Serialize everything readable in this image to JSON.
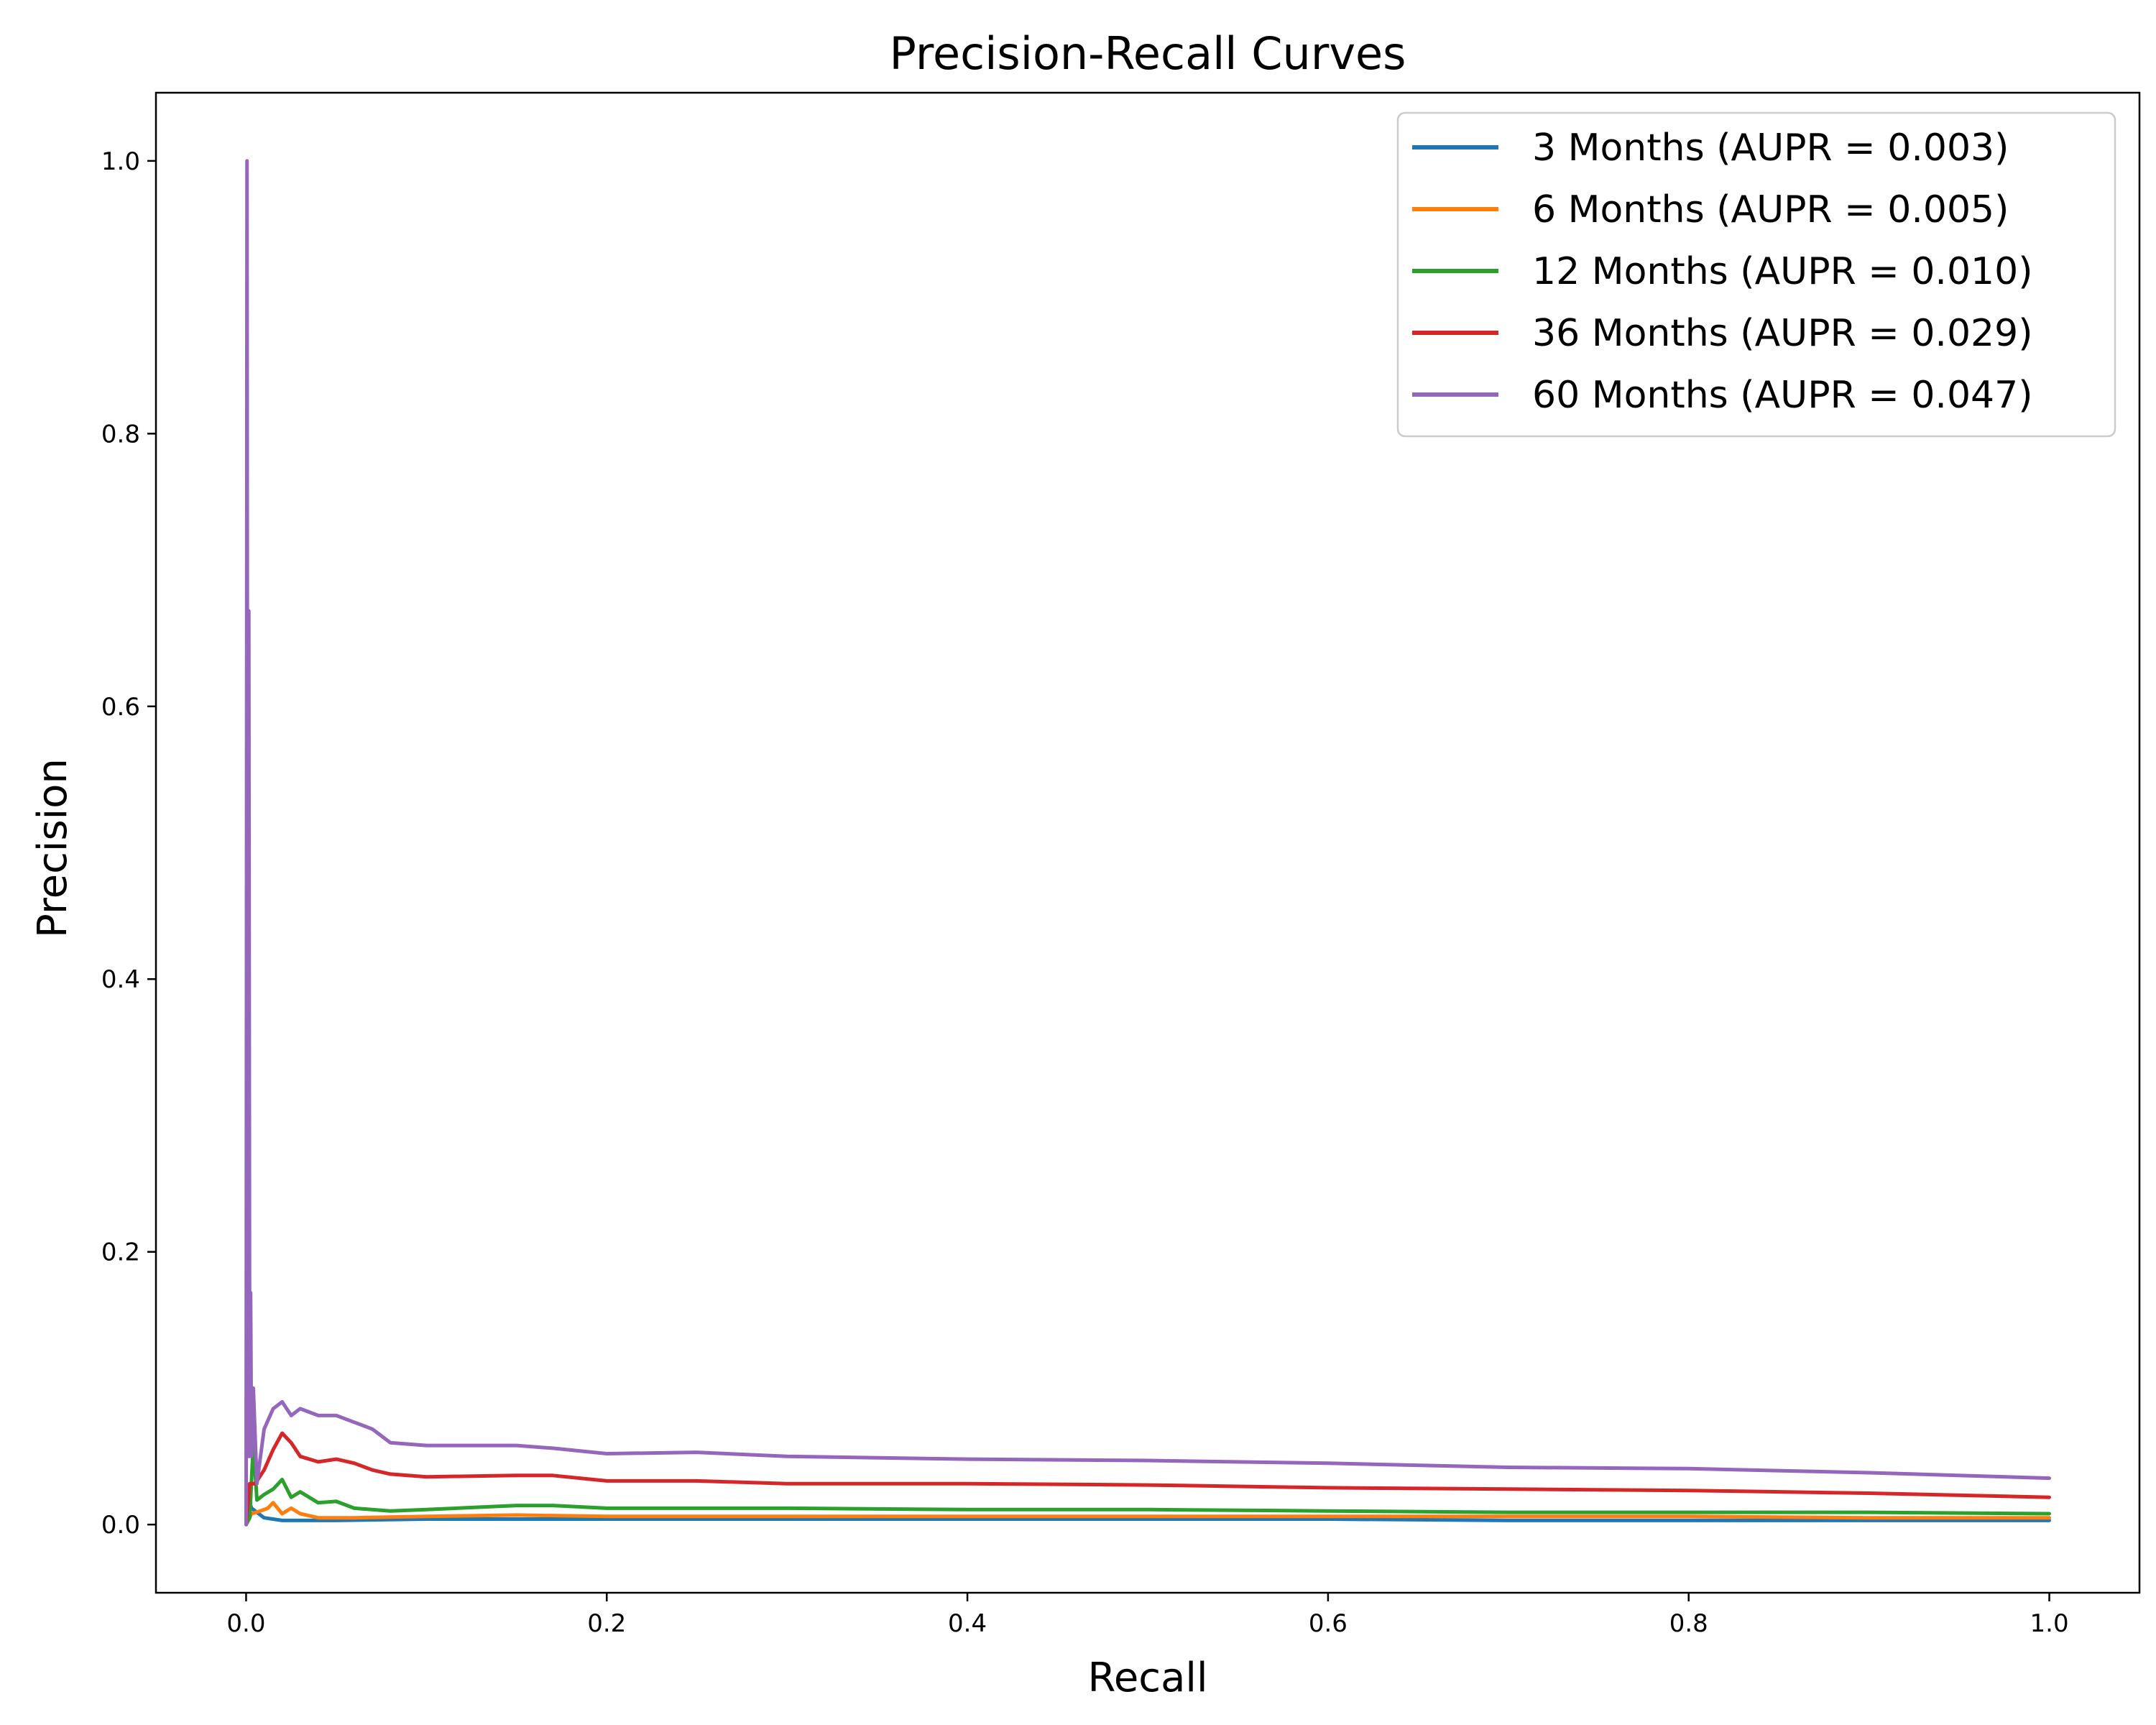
{
  "chart_data": {
    "type": "line",
    "title": "Precision-Recall Curves",
    "xlabel": "Recall",
    "ylabel": "Precision",
    "xlim": [
      -0.05,
      1.05
    ],
    "ylim": [
      -0.05,
      1.05
    ],
    "xticks": [
      "0.0",
      "0.2",
      "0.4",
      "0.6",
      "0.8",
      "1.0"
    ],
    "yticks": [
      "0.0",
      "0.2",
      "0.4",
      "0.6",
      "0.8",
      "1.0"
    ],
    "grid": false,
    "legend_position": "top-right",
    "series": [
      {
        "name": "3 Months (AUPR = 0.003)",
        "color": "#1f77b4",
        "points": [
          [
            0,
            0
          ],
          [
            0.001,
            0.02
          ],
          [
            0.003,
            0.012
          ],
          [
            0.006,
            0.009
          ],
          [
            0.01,
            0.005
          ],
          [
            0.02,
            0.003
          ],
          [
            0.05,
            0.003
          ],
          [
            0.1,
            0.004
          ],
          [
            0.2,
            0.004
          ],
          [
            0.3,
            0.004
          ],
          [
            0.4,
            0.004
          ],
          [
            0.5,
            0.004
          ],
          [
            0.6,
            0.004
          ],
          [
            0.7,
            0.003
          ],
          [
            0.8,
            0.003
          ],
          [
            0.9,
            0.003
          ],
          [
            1.0,
            0.003
          ]
        ]
      },
      {
        "name": "6 Months (AUPR = 0.005)",
        "color": "#ff7f0e",
        "points": [
          [
            0,
            0
          ],
          [
            0.003,
            0.008
          ],
          [
            0.008,
            0.01
          ],
          [
            0.012,
            0.012
          ],
          [
            0.015,
            0.016
          ],
          [
            0.02,
            0.008
          ],
          [
            0.025,
            0.012
          ],
          [
            0.03,
            0.008
          ],
          [
            0.04,
            0.005
          ],
          [
            0.06,
            0.005
          ],
          [
            0.1,
            0.006
          ],
          [
            0.15,
            0.007
          ],
          [
            0.2,
            0.006
          ],
          [
            0.3,
            0.006
          ],
          [
            0.4,
            0.006
          ],
          [
            0.5,
            0.006
          ],
          [
            0.6,
            0.006
          ],
          [
            0.7,
            0.006
          ],
          [
            0.8,
            0.006
          ],
          [
            0.9,
            0.005
          ],
          [
            1.0,
            0.005
          ]
        ]
      },
      {
        "name": "12 Months (AUPR = 0.010)",
        "color": "#2ca02c",
        "points": [
          [
            0,
            0
          ],
          [
            0.002,
            0.005
          ],
          [
            0.004,
            0.06
          ],
          [
            0.006,
            0.018
          ],
          [
            0.01,
            0.022
          ],
          [
            0.015,
            0.026
          ],
          [
            0.02,
            0.033
          ],
          [
            0.025,
            0.02
          ],
          [
            0.03,
            0.024
          ],
          [
            0.04,
            0.016
          ],
          [
            0.05,
            0.017
          ],
          [
            0.06,
            0.012
          ],
          [
            0.08,
            0.01
          ],
          [
            0.1,
            0.011
          ],
          [
            0.15,
            0.014
          ],
          [
            0.17,
            0.014
          ],
          [
            0.2,
            0.012
          ],
          [
            0.3,
            0.012
          ],
          [
            0.4,
            0.011
          ],
          [
            0.5,
            0.011
          ],
          [
            0.6,
            0.01
          ],
          [
            0.7,
            0.009
          ],
          [
            0.8,
            0.009
          ],
          [
            0.9,
            0.009
          ],
          [
            1.0,
            0.008
          ]
        ]
      },
      {
        "name": "36 Months (AUPR = 0.029)",
        "color": "#d62728",
        "points": [
          [
            0,
            0
          ],
          [
            0.002,
            0.03
          ],
          [
            0.005,
            0.03
          ],
          [
            0.01,
            0.04
          ],
          [
            0.015,
            0.055
          ],
          [
            0.02,
            0.067
          ],
          [
            0.025,
            0.06
          ],
          [
            0.03,
            0.05
          ],
          [
            0.04,
            0.046
          ],
          [
            0.05,
            0.048
          ],
          [
            0.06,
            0.045
          ],
          [
            0.07,
            0.04
          ],
          [
            0.08,
            0.037
          ],
          [
            0.1,
            0.035
          ],
          [
            0.15,
            0.036
          ],
          [
            0.17,
            0.036
          ],
          [
            0.2,
            0.032
          ],
          [
            0.25,
            0.032
          ],
          [
            0.3,
            0.03
          ],
          [
            0.4,
            0.03
          ],
          [
            0.5,
            0.029
          ],
          [
            0.6,
            0.027
          ],
          [
            0.7,
            0.026
          ],
          [
            0.8,
            0.025
          ],
          [
            0.9,
            0.023
          ],
          [
            1.0,
            0.02
          ]
        ]
      },
      {
        "name": "60 Months (AUPR = 0.047)",
        "color": "#9467bd",
        "points": [
          [
            0,
            0
          ],
          [
            0.0005,
            1.0
          ],
          [
            0.001,
            0.05
          ],
          [
            0.0015,
            0.67
          ],
          [
            0.002,
            0.05
          ],
          [
            0.0025,
            0.17
          ],
          [
            0.003,
            0.05
          ],
          [
            0.004,
            0.1
          ],
          [
            0.006,
            0.03
          ],
          [
            0.01,
            0.07
          ],
          [
            0.015,
            0.085
          ],
          [
            0.02,
            0.09
          ],
          [
            0.025,
            0.08
          ],
          [
            0.03,
            0.085
          ],
          [
            0.04,
            0.08
          ],
          [
            0.05,
            0.08
          ],
          [
            0.06,
            0.075
          ],
          [
            0.07,
            0.07
          ],
          [
            0.08,
            0.06
          ],
          [
            0.1,
            0.058
          ],
          [
            0.15,
            0.058
          ],
          [
            0.17,
            0.056
          ],
          [
            0.2,
            0.052
          ],
          [
            0.25,
            0.053
          ],
          [
            0.3,
            0.05
          ],
          [
            0.4,
            0.048
          ],
          [
            0.5,
            0.047
          ],
          [
            0.6,
            0.045
          ],
          [
            0.7,
            0.042
          ],
          [
            0.8,
            0.041
          ],
          [
            0.9,
            0.038
          ],
          [
            1.0,
            0.034
          ]
        ]
      }
    ]
  }
}
